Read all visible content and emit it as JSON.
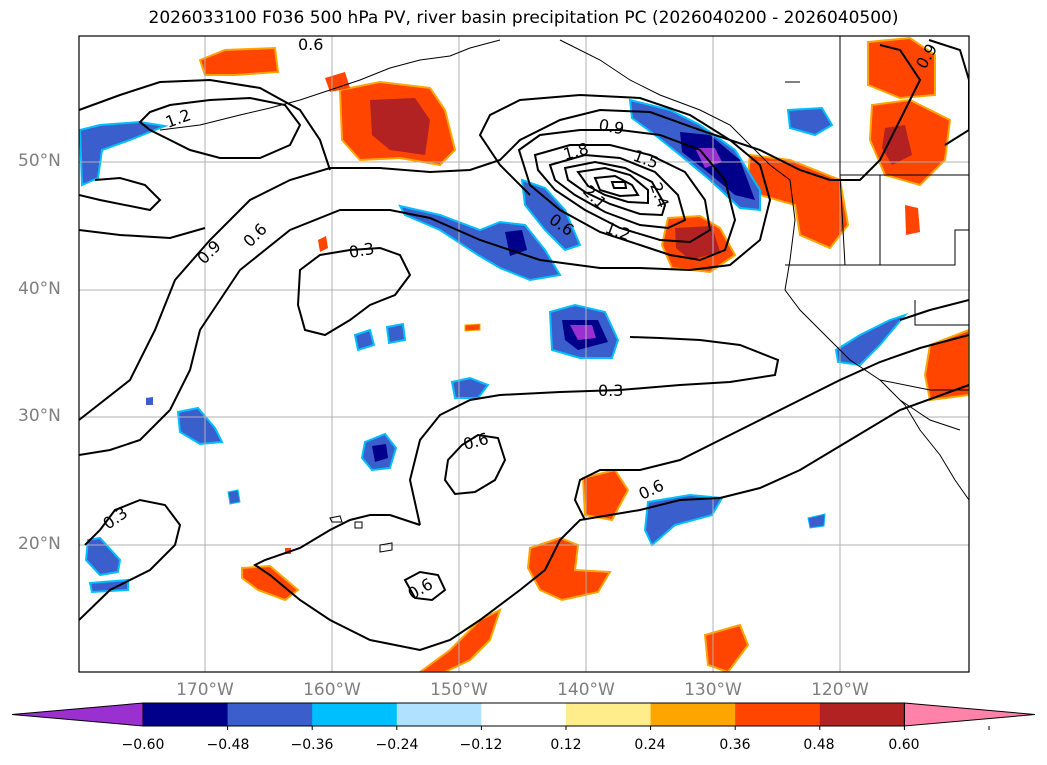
{
  "title": "2026033100 F036 500 hPa PV, river basin precipitation PC (2026040200 - 2026040500)",
  "lat_labels": [
    "50°N",
    "40°N",
    "30°N",
    "20°N"
  ],
  "lon_labels": [
    "170°W",
    "160°W",
    "150°W",
    "140°W",
    "130°W",
    "120°W"
  ],
  "contour_labels": [
    "0.6",
    "1.2",
    "0.9",
    "0.6",
    "0.3",
    "0.9",
    "1.5",
    "1.8",
    "2.1",
    "2.4",
    "1.2",
    "0.6",
    "0.3",
    "0.6",
    "0.6",
    "0.3",
    "0.6",
    "0.9"
  ],
  "colorbar": {
    "ticks": [
      "−0.60",
      "−0.48",
      "−0.36",
      "−0.24",
      "−0.12",
      "0.12",
      "0.24",
      "0.36",
      "0.48",
      "0.60"
    ],
    "colors": [
      "#9b30d0",
      "#00008b",
      "#3a5fcd",
      "#00bfff",
      "#b0e2ff",
      "#ffffff",
      "#ffec8b",
      "#ffa500",
      "#ff4500",
      "#b22222",
      "#ff82ab"
    ]
  }
}
